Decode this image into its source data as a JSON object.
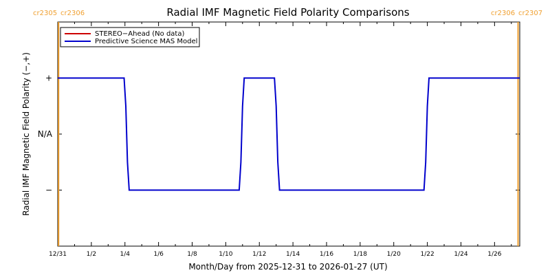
{
  "chart_data": {
    "type": "line",
    "title": "Radial IMF Magnetic Field Polarity Comparisons",
    "xlabel": "Month/Day from 2025-12-31 to 2026-01-27 (UT)",
    "ylabel": "Radial IMF Magnetic Field Polarity (−,+)",
    "x_ticks": [
      "12/31",
      "1/2",
      "1/4",
      "1/6",
      "1/8",
      "1/10",
      "1/12",
      "1/14",
      "1/16",
      "1/18",
      "1/20",
      "1/22",
      "1/24",
      "1/26"
    ],
    "x_tick_days": [
      0,
      2,
      4,
      6,
      8,
      10,
      12,
      14,
      16,
      18,
      20,
      22,
      24,
      26
    ],
    "xlim_days": [
      0,
      27.5
    ],
    "y_ticks": [
      {
        "label": "+",
        "value": 1
      },
      {
        "label": "N/A",
        "value": 0
      },
      {
        "label": "−",
        "value": -1
      }
    ],
    "ylim": [
      -2,
      2
    ],
    "legend_position": "top-left",
    "carrington_markers": [
      {
        "day": 0.05,
        "label_left": "cr2305",
        "label_right": "cr2306",
        "side": "left"
      },
      {
        "day": 27.4,
        "label_left": "cr2306",
        "label_right": "cr2307",
        "side": "right"
      }
    ],
    "series": [
      {
        "name": "STEREO−Ahead (No data)",
        "color": "#cc0000",
        "x_days": [],
        "y": []
      },
      {
        "name": "Predictive Science MAS Model",
        "color": "#0000cc",
        "x_days": [
          0,
          3.95,
          4.05,
          4.15,
          4.25,
          10.8,
          10.9,
          11.0,
          11.1,
          12.9,
          13.0,
          13.1,
          13.2,
          21.8,
          21.9,
          22.0,
          22.1,
          27.5
        ],
        "y": [
          1,
          1,
          0.5,
          -0.5,
          -1,
          -1,
          -0.5,
          0.5,
          1,
          1,
          0.5,
          -0.5,
          -1,
          -1,
          -0.5,
          0.5,
          1,
          1
        ]
      }
    ]
  },
  "colors": {
    "marker": "#f0a030",
    "axis": "#000000"
  }
}
